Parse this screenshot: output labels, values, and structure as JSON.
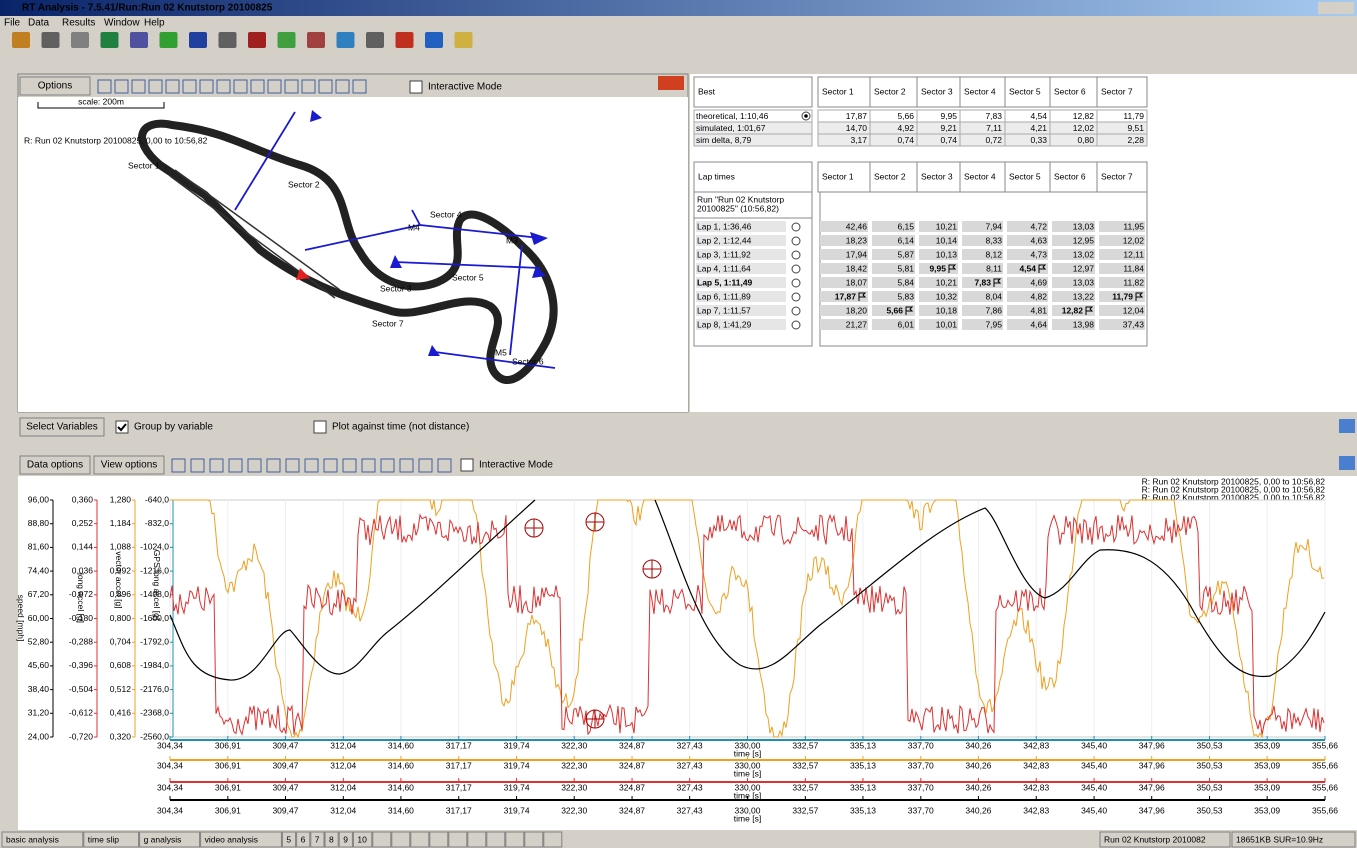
{
  "window": {
    "title": "RT Analysis - 7.5.41/Run:Run 02 Knutstorp 20100825",
    "menu": [
      "File",
      "Data",
      "Results",
      "Window",
      "Help"
    ]
  },
  "map": {
    "options": "Options",
    "interactive": "Interactive Mode",
    "scale": "scale: 200m",
    "run_label": "R:  Run 02 Knutstorp 20100825, 0,00 to 10:56,82",
    "labels": [
      "Sector 1",
      "Sector 2",
      "Sector 3",
      "Sector 4",
      "Sector 5",
      "Sector 6",
      "Sector 7",
      "M4",
      "M3",
      "M5"
    ]
  },
  "best_table": {
    "header": [
      "Best",
      "Sector 1",
      "Sector 2",
      "Sector 3",
      "Sector 4",
      "Sector 5",
      "Sector 6",
      "Sector 7"
    ],
    "rows": [
      [
        "theoretical, 1:10,46",
        "17,87",
        "5,66",
        "9,95",
        "7,83",
        "4,54",
        "12,82",
        "11,79"
      ],
      [
        "simulated, 1:01,67",
        "14,70",
        "4,92",
        "9,21",
        "7,11",
        "4,21",
        "12,02",
        "9,51"
      ],
      [
        "sim delta, 8,79",
        "3,17",
        "0,74",
        "0,74",
        "0,72",
        "0,33",
        "0,80",
        "2,28"
      ]
    ]
  },
  "lap_table": {
    "header": [
      "Lap times",
      "Sector 1",
      "Sector 2",
      "Sector 3",
      "Sector 4",
      "Sector 5",
      "Sector 6",
      "Sector 7"
    ],
    "run": [
      "Run \"Run 02 Knutstorp",
      "20100825\" (10:56,82)"
    ],
    "rows": [
      [
        "Lap 1, 1:36,46",
        "42,46",
        "6,15",
        "10,21",
        "7,94",
        "4,72",
        "13,03",
        "11,95"
      ],
      [
        "Lap 2, 1:12,44",
        "18,23",
        "6,14",
        "10,14",
        "8,33",
        "4,63",
        "12,95",
        "12,02"
      ],
      [
        "Lap 3, 1:11,92",
        "17,94",
        "5,87",
        "10,13",
        "8,12",
        "4,73",
        "13,02",
        "12,11"
      ],
      [
        "Lap 4, 1:11,64",
        "18,42",
        "5,81",
        "9,95",
        "8,11",
        "4,54",
        "12,97",
        "11,84"
      ],
      [
        "Lap 5, 1:11,49",
        "18,07",
        "5,84",
        "10,21",
        "7,83",
        "4,69",
        "13,03",
        "11,82"
      ],
      [
        "Lap 6, 1:11,89",
        "17,87",
        "5,83",
        "10,32",
        "8,04",
        "4,82",
        "13,22",
        "11,79"
      ],
      [
        "Lap 7, 1:11,57",
        "18,20",
        "5,66",
        "10,18",
        "7,86",
        "4,81",
        "12,82",
        "12,04"
      ],
      [
        "Lap 8, 1:41,29",
        "21,27",
        "6,01",
        "10,01",
        "7,95",
        "4,64",
        "13,98",
        "37,43"
      ]
    ]
  },
  "variables": {
    "select": "Select Variables",
    "group": "Group by variable",
    "plot_time": "Plot against time (not distance)"
  },
  "chart_data": {
    "type": "line",
    "toolbar": [
      "Data options",
      "View options"
    ],
    "interactive": "Interactive Mode",
    "legend": [
      {
        "name": "R:  Run 02 Knutstorp 20100825, 0,00 to 10:56,82",
        "color": "#000000"
      },
      {
        "name": "R:  Run 02 Knutstorp 20100825, 0,00 to 10:56,82",
        "color": "#e03030"
      },
      {
        "name": "R:  Run 02 Knutstorp 20100825, 0,00 to 10:56,82",
        "color": "#f0a020"
      },
      {
        "name": "R:  Run 02 Knutstorp 20100825, 0,00 to 10:56,82",
        "color": "#2090b0"
      }
    ],
    "xlabel": "time [s]",
    "xlim": [
      304.34,
      355.66
    ],
    "xticks": [
      {
        "value": 304.34,
        "label": "304,34"
      },
      {
        "value": 306.91,
        "label": "306,91"
      },
      {
        "value": 309.47,
        "label": "309,47"
      },
      {
        "value": 312.04,
        "label": "312,04"
      },
      {
        "value": 314.6,
        "label": "314,60"
      },
      {
        "value": 317.17,
        "label": "317,17"
      },
      {
        "value": 319.74,
        "label": "319,74"
      },
      {
        "value": 322.3,
        "label": "322,30"
      },
      {
        "value": 324.87,
        "label": "324,87"
      },
      {
        "value": 327.43,
        "label": "327,43"
      },
      {
        "value": 330,
        "label": "330,00"
      },
      {
        "value": 332.57,
        "label": "332,57"
      },
      {
        "value": 335.13,
        "label": "335,13"
      },
      {
        "value": 337.7,
        "label": "337,70"
      },
      {
        "value": 340.26,
        "label": "340,26"
      },
      {
        "value": 342.83,
        "label": "342,83"
      },
      {
        "value": 345.4,
        "label": "345,40"
      },
      {
        "value": 347.96,
        "label": "347,96"
      },
      {
        "value": 350.53,
        "label": "350,53"
      },
      {
        "value": 353.09,
        "label": "353,09"
      },
      {
        "value": 355.66,
        "label": "355,66"
      }
    ],
    "xaxis_colors": [
      "#2090b0",
      "#f0a020",
      "#e03030",
      "#000000"
    ],
    "axes": [
      {
        "name": "speed [mph]",
        "color": "#000000",
        "ylim": [
          24,
          96
        ],
        "yticks": [
          {
            "value": 96,
            "label": "96,00"
          },
          {
            "value": 88.8,
            "label": "88,80"
          },
          {
            "value": 81.6,
            "label": "81,60"
          },
          {
            "value": 74.4,
            "label": "74,40"
          },
          {
            "value": 67.2,
            "label": "67,20"
          },
          {
            "value": 60,
            "label": "60,00"
          },
          {
            "value": 52.8,
            "label": "52,80"
          },
          {
            "value": 45.6,
            "label": "45,60"
          },
          {
            "value": 38.4,
            "label": "38,40"
          },
          {
            "value": 31.2,
            "label": "31,20"
          },
          {
            "value": 24,
            "label": "24,00"
          }
        ]
      },
      {
        "name": "long accel [g]",
        "color": "#e03030",
        "ylim": [
          -0.72,
          0.36
        ],
        "yticks": [
          {
            "value": 0.36,
            "label": "0,360"
          },
          {
            "value": 0.252,
            "label": "0,252"
          },
          {
            "value": 0.144,
            "label": "0,144"
          },
          {
            "value": 0.036,
            "label": "0,036"
          },
          {
            "value": -0.072,
            "label": "-0,072"
          },
          {
            "value": -0.18,
            "label": "-0,180"
          },
          {
            "value": -0.288,
            "label": "-0,288"
          },
          {
            "value": -0.396,
            "label": "-0,396"
          },
          {
            "value": -0.504,
            "label": "-0,504"
          },
          {
            "value": -0.612,
            "label": "-0,612"
          },
          {
            "value": -0.72,
            "label": "-0,720"
          }
        ]
      },
      {
        "name": "vector accel [g]",
        "color": "#f0a020",
        "ylim": [
          0.32,
          1.28
        ],
        "yticks": [
          {
            "value": 1.28,
            "label": "1,280"
          },
          {
            "value": 1.184,
            "label": "1,184"
          },
          {
            "value": 1.088,
            "label": "1,088"
          },
          {
            "value": 0.992,
            "label": "0,992"
          },
          {
            "value": 0.896,
            "label": "0,896"
          },
          {
            "value": 0.8,
            "label": "0,800"
          },
          {
            "value": 0.704,
            "label": "0,704"
          },
          {
            "value": 0.608,
            "label": "0,608"
          },
          {
            "value": 0.512,
            "label": "0,512"
          },
          {
            "value": 0.416,
            "label": "0,416"
          },
          {
            "value": 0.32,
            "label": "0,320"
          }
        ]
      },
      {
        "name": "GPS long accel [g]",
        "color": "#2090b0",
        "ylim": [
          -2560,
          -640
        ],
        "yticks": [
          {
            "value": -640,
            "label": "-640,0"
          },
          {
            "value": -832,
            "label": "-832,0"
          },
          {
            "value": -1024,
            "label": "-1024,0"
          },
          {
            "value": -1216,
            "label": "-1216,0"
          },
          {
            "value": -1408,
            "label": "-1408,0"
          },
          {
            "value": -1600,
            "label": "-1600,0"
          },
          {
            "value": -1792,
            "label": "-1792,0"
          },
          {
            "value": -1984,
            "label": "-1984,0"
          },
          {
            "value": -2176,
            "label": "-2176,0"
          },
          {
            "value": -2368,
            "label": "-2368,0"
          },
          {
            "value": -2560,
            "label": "-2560,0"
          }
        ]
      }
    ]
  },
  "tabs": [
    "basic analysis",
    "time slip",
    "g analysis",
    "video analysis",
    "5",
    "6",
    "7",
    "8",
    "9",
    "10"
  ],
  "status": [
    "Run 02 Knutstorp 2010082",
    "18651KB SUR=10.9Hz"
  ]
}
